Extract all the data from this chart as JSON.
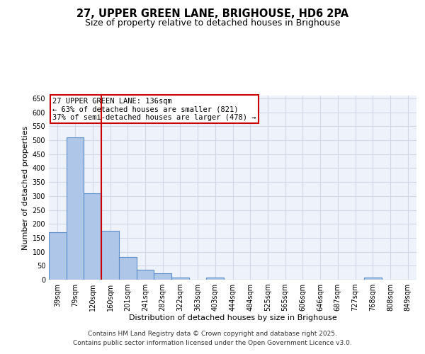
{
  "title": "27, UPPER GREEN LANE, BRIGHOUSE, HD6 2PA",
  "subtitle": "Size of property relative to detached houses in Brighouse",
  "xlabel": "Distribution of detached houses by size in Brighouse",
  "ylabel": "Number of detached properties",
  "categories": [
    "39sqm",
    "79sqm",
    "120sqm",
    "160sqm",
    "201sqm",
    "241sqm",
    "282sqm",
    "322sqm",
    "363sqm",
    "403sqm",
    "444sqm",
    "484sqm",
    "525sqm",
    "565sqm",
    "606sqm",
    "646sqm",
    "687sqm",
    "727sqm",
    "768sqm",
    "808sqm",
    "849sqm"
  ],
  "bar_heights": [
    170,
    510,
    310,
    175,
    80,
    35,
    22,
    7,
    0,
    7,
    0,
    0,
    0,
    0,
    0,
    0,
    0,
    0,
    7,
    0,
    0
  ],
  "bar_color": "#aec6e8",
  "bar_edge_color": "#5b8fc9",
  "bar_edge_width": 0.8,
  "ylim": [
    0,
    660
  ],
  "yticks": [
    0,
    50,
    100,
    150,
    200,
    250,
    300,
    350,
    400,
    450,
    500,
    550,
    600,
    650
  ],
  "red_line_x": 2.5,
  "red_line_color": "#cc0000",
  "annotation_title": "27 UPPER GREEN LANE: 136sqm",
  "annotation_line2": "← 63% of detached houses are smaller (821)",
  "annotation_line3": "37% of semi-detached houses are larger (478) →",
  "annotation_box_color": "#cc0000",
  "annotation_bg": "#ffffff",
  "footer_line1": "Contains HM Land Registry data © Crown copyright and database right 2025.",
  "footer_line2": "Contains public sector information licensed under the Open Government Licence v3.0.",
  "grid_color": "#d0d8e8",
  "background_color": "#eef2fa",
  "fig_bg_color": "#ffffff",
  "title_fontsize": 10.5,
  "subtitle_fontsize": 9,
  "axis_label_fontsize": 8,
  "tick_fontsize": 7,
  "footer_fontsize": 6.5,
  "annot_fontsize": 7.5
}
